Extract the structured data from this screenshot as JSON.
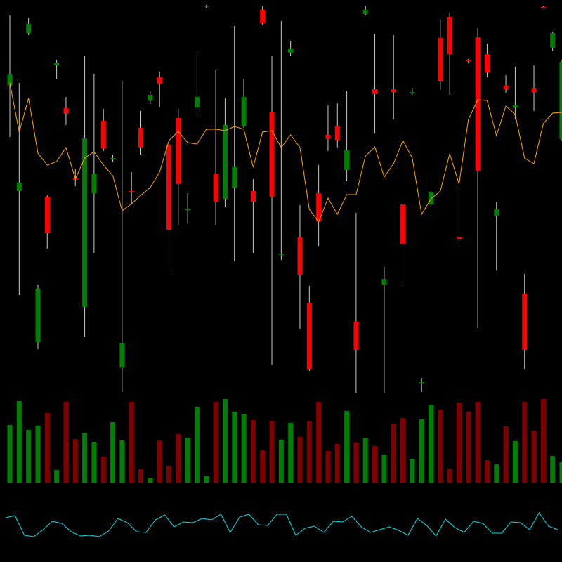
{
  "chart_data": [
    {
      "type": "candlestick",
      "open": [
        438,
        288,
        513,
        73,
        280,
        467,
        406,
        306,
        123,
        285,
        388,
        333,
        37,
        288,
        378,
        417,
        450,
        354,
        392,
        261,
        407,
        550,
        312,
        277,
        292,
        380,
        288,
        546,
        400,
        197,
        485,
        222,
        129,
        285,
        368,
        380,
        318,
        102,
        540,
        433,
        155,
        433,
        269,
        427,
        15,
        269,
        506,
        536,
        222,
        475,
        507,
        483,
        253,
        438,
        407,
        142,
        435,
        550,
        492,
        362
      ],
      "high": [
        538,
        442,
        535,
        155,
        282,
        475,
        422,
        320,
        480,
        455,
        405,
        340,
        445,
        315,
        402,
        430,
        458,
        365,
        405,
        285,
        487,
        553,
        460,
        420,
        523,
        448,
        305,
        552,
        480,
        530,
        502,
        268,
        153,
        325,
        410,
        413,
        430,
        257,
        552,
        512,
        180,
        510,
        280,
        435,
        22,
        312,
        532,
        542,
        295,
        476,
        520,
        498,
        272,
        453,
        465,
        170,
        467,
        551,
        515,
        475
      ],
      "low": [
        365,
        140,
        510,
        63,
        206,
        448,
        382,
        295,
        80,
        200,
        345,
        330,
        2,
        270,
        340,
        412,
        408,
        175,
        240,
        242,
        395,
        548,
        240,
        265,
        188,
        378,
        200,
        525,
        40,
        190,
        480,
        92,
        32,
        210,
        345,
        350,
        302,
        0,
        538,
        370,
        0,
        390,
        157,
        425,
        2,
        255,
        432,
        425,
        215,
        470,
        93,
        450,
        175,
        428,
        390,
        35,
        402,
        548,
        488,
        360
      ],
      "close": [
        454,
        300,
        526,
        149,
        228,
        471,
        399,
        304,
        363,
        312,
        349,
        335,
        72,
        286,
        350,
        425,
        441,
        233,
        298,
        263,
        422,
        551,
        273,
        382,
        322,
        422,
        273,
        527,
        280,
        199,
        490,
        168,
        35,
        245,
        362,
        361,
        346,
        62,
        546,
        426,
        163,
        429,
        213,
        429,
        16,
        287,
        444,
        483,
        220,
        473,
        317,
        457,
        262,
        433,
        410,
        62,
        428,
        549,
        513,
        472
      ],
      "up_color": "#008000",
      "down_color": "#ff0000",
      "ylim": [
        0,
        560
      ],
      "series": [
        {
          "color": "#ffa500",
          "values": [
            442,
            372,
            420,
            342,
            325,
            330,
            350,
            305,
            335,
            344,
            325,
            310,
            260,
            270,
            282,
            293,
            315,
            360,
            373,
            357,
            355,
            376,
            376,
            374,
            380,
            376,
            322,
            372,
            374,
            350,
            368,
            350,
            262,
            244,
            278,
            255,
            283,
            283,
            338,
            351,
            308,
            327,
            360,
            335,
            255,
            277,
            288,
            341,
            298,
            390,
            418,
            417,
            367,
            409,
            397,
            335,
            327,
            384,
            399,
            400
          ]
        }
      ]
    },
    {
      "type": "bar",
      "values": [
        83,
        117,
        76,
        82,
        100,
        19,
        116,
        63,
        72,
        59,
        38,
        87,
        61,
        116,
        20,
        8,
        61,
        25,
        70,
        65,
        109,
        10,
        116,
        120,
        102,
        99,
        90,
        47,
        89,
        62,
        86,
        66,
        88,
        116,
        46,
        56,
        103,
        58,
        64,
        53,
        41,
        85,
        93,
        35,
        91,
        112,
        105,
        21,
        115,
        102,
        116,
        33,
        27,
        81,
        60,
        116,
        75,
        120,
        39,
        30
      ],
      "up_color": "#008000",
      "down_color": "#800000",
      "ylim": [
        0,
        130
      ]
    },
    {
      "type": "line",
      "values": [
        53,
        56,
        28,
        26,
        36,
        48,
        45,
        33,
        27,
        28,
        26,
        34,
        52,
        46,
        33,
        32,
        50,
        57,
        40,
        47,
        46,
        52,
        50,
        58,
        32,
        54,
        58,
        43,
        42,
        58,
        58,
        28,
        38,
        41,
        32,
        48,
        47,
        55,
        40,
        32,
        36,
        40,
        35,
        28,
        52,
        42,
        27,
        51,
        39,
        32,
        48,
        45,
        31,
        31,
        47,
        46,
        36,
        60,
        41,
        36
      ],
      "color": "#00e5ee",
      "ylim": [
        0,
        100
      ]
    }
  ]
}
